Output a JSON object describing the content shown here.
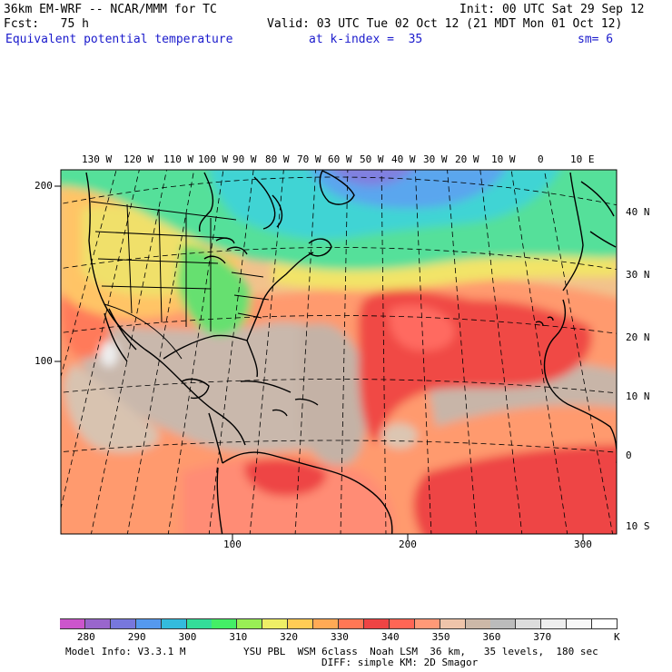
{
  "header": {
    "model": "36km EM-WRF -- NCAR/MMM for TC",
    "init": "Init: 00 UTC Sat 29 Sep 12",
    "fcst": "Fcst:   75 h",
    "valid": "Valid: 03 UTC Tue 02 Oct 12 (21 MDT Mon 01 Oct 12)",
    "field": "Equivalent potential temperature",
    "kindex": "at k-index =  35",
    "sm": "sm= 6"
  },
  "map": {
    "lon_labels": [
      "130 W",
      "120 W",
      "110 W",
      "100 W",
      "90 W",
      "80 W",
      "70 W",
      "60 W",
      "50 W",
      "40 W",
      "30 W",
      "20 W",
      "10 W",
      "0",
      "10 E"
    ],
    "lat_labels": [
      "40 N",
      "30 N",
      "20 N",
      "10 N",
      "0",
      "10 S"
    ],
    "left_ticks": [
      "200",
      "100"
    ],
    "bottom_ticks": [
      "100",
      "200",
      "300"
    ]
  },
  "colorbar": {
    "colors": [
      "#cc55cc",
      "#9966cc",
      "#7777dd",
      "#5599ee",
      "#33bbdd",
      "#33dd99",
      "#44ee66",
      "#99ee55",
      "#eeee66",
      "#ffcc55",
      "#ffaa55",
      "#ff7755",
      "#ee4444",
      "#ff6655",
      "#ff9977",
      "#eec4aa",
      "#ccb8a8",
      "#bbbbbb",
      "#dddddd",
      "#eeeeee",
      "#f8f8f8",
      "#ffffff"
    ],
    "labels": [
      "280",
      "290",
      "300",
      "310",
      "320",
      "330",
      "340",
      "350",
      "360",
      "370"
    ],
    "unit": "K"
  },
  "footer": {
    "line1_left": "Model Info: V3.3.1 M",
    "line1_right": "YSU PBL  WSM 6class  Noah LSM  36 km,   35 levels,  180 sec",
    "line2": "DIFF: simple KM: 2D Smagor"
  }
}
